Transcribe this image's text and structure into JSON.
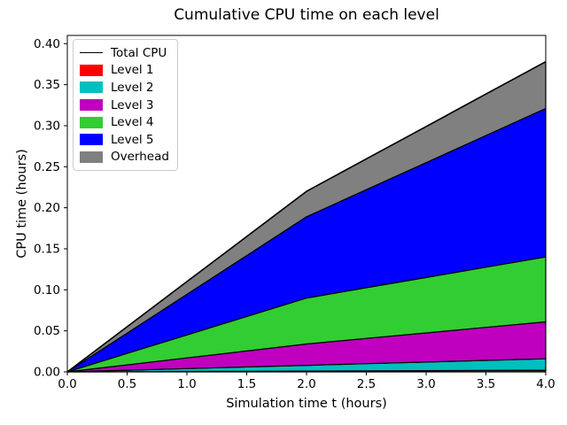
{
  "chart_data": {
    "type": "area",
    "stacked": true,
    "title": "Cumulative CPU time on each level",
    "xlabel": "Simulation time t (hours)",
    "ylabel": "CPU time (hours)",
    "x": [
      0,
      0.5,
      1.0,
      1.5,
      2.0,
      2.5,
      3.0,
      3.5,
      4.0
    ],
    "series": [
      {
        "name": "Level 1",
        "color": "#ff0000",
        "values": [
          0,
          0.00025,
          0.0005,
          0.00075,
          0.001,
          0.00125,
          0.0015,
          0.00175,
          0.002
        ]
      },
      {
        "name": "Level 2",
        "color": "#00bfbf",
        "values": [
          0,
          0.00175,
          0.0035,
          0.00525,
          0.007,
          0.00875,
          0.0105,
          0.01225,
          0.014
        ]
      },
      {
        "name": "Level 3",
        "color": "#bf00bf",
        "values": [
          0,
          0.0065,
          0.013,
          0.0195,
          0.026,
          0.0308,
          0.0355,
          0.0403,
          0.045
        ]
      },
      {
        "name": "Level 4",
        "color": "#32cd32",
        "values": [
          0,
          0.014,
          0.028,
          0.042,
          0.056,
          0.0618,
          0.0675,
          0.0733,
          0.079
        ]
      },
      {
        "name": "Level 5",
        "color": "#0000ff",
        "values": [
          0,
          0.02475,
          0.0495,
          0.07425,
          0.099,
          0.1195,
          0.14,
          0.1605,
          0.181
        ]
      },
      {
        "name": "Overhead",
        "color": "#808080",
        "values": [
          0,
          0.00775,
          0.0155,
          0.02325,
          0.031,
          0.0375,
          0.044,
          0.0505,
          0.057
        ]
      }
    ],
    "total_line": {
      "name": "Total CPU",
      "color": "#000000",
      "values": [
        0,
        0.055,
        0.11,
        0.165,
        0.22,
        0.26,
        0.3,
        0.339,
        0.378
      ]
    },
    "edge_color": "#000000",
    "xlim": [
      0,
      4
    ],
    "ylim": [
      0,
      0.41
    ],
    "grid": false,
    "legend_position": "upper left",
    "x_ticks": {
      "values": [
        0,
        0.5,
        1.0,
        1.5,
        2.0,
        2.5,
        3.0,
        3.5,
        4.0
      ],
      "labels": [
        "0.0",
        "0.5",
        "1.0",
        "1.5",
        "2.0",
        "2.5",
        "3.0",
        "3.5",
        "4.0"
      ]
    },
    "y_ticks": {
      "values": [
        0,
        0.05,
        0.1,
        0.15,
        0.2,
        0.25,
        0.3,
        0.35,
        0.4
      ],
      "labels": [
        "0.00",
        "0.05",
        "0.10",
        "0.15",
        "0.20",
        "0.25",
        "0.30",
        "0.35",
        "0.40"
      ]
    },
    "legend": [
      {
        "label": "Total CPU",
        "type": "line",
        "color": "#000000"
      },
      {
        "label": "Level 1",
        "type": "patch",
        "color": "#ff0000"
      },
      {
        "label": "Level 2",
        "type": "patch",
        "color": "#00bfbf"
      },
      {
        "label": "Level 3",
        "type": "patch",
        "color": "#bf00bf"
      },
      {
        "label": "Level 4",
        "type": "patch",
        "color": "#32cd32"
      },
      {
        "label": "Level 5",
        "type": "patch",
        "color": "#0000ff"
      },
      {
        "label": "Overhead",
        "type": "patch",
        "color": "#808080"
      }
    ]
  }
}
